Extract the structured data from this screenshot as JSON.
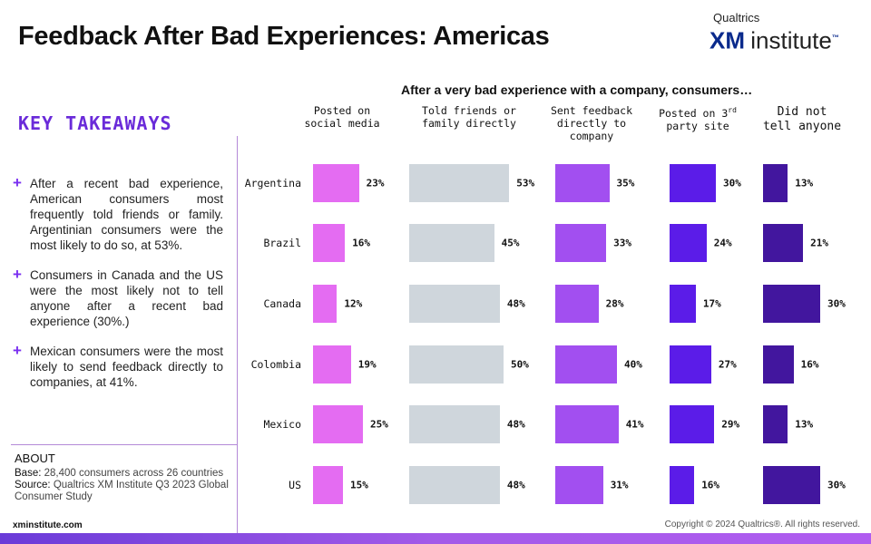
{
  "header": {
    "title": "Feedback After Bad Experiences: Americas",
    "logo_top": "Qualtrics",
    "logo_xm": "XM",
    "logo_institute": "institute"
  },
  "takeaways": {
    "heading": "KEY TAKEAWAYS",
    "items": [
      "After a recent bad experience, American consumers most frequently told friends or family. Argentinian consumers were the most likely to do so, at 53%.",
      "Consumers in Canada and the US were the most likely not to tell anyone after a recent bad experience (30%.)",
      "Mexican consumers were the most likely to send feedback directly to companies, at 41%."
    ]
  },
  "about": {
    "heading": "ABOUT",
    "base_label": "Base:",
    "base": "28,400 consumers across 26 countries",
    "source_label": "Source:",
    "source": "Qualtrics XM Institute Q3 2023 Global Consumer Study"
  },
  "footer": {
    "site": "xminstitute.com",
    "copyright": "Copyright © 2024 Qualtrics®. All rights reserved."
  },
  "chart_data": {
    "type": "bar",
    "title": "After a very bad experience with a company, consumers…",
    "categories": [
      "Argentina",
      "Brazil",
      "Canada",
      "Colombia",
      "Mexico",
      "US"
    ],
    "series": [
      {
        "name": "Posted on social media",
        "color": "#e46cf2",
        "values": [
          23,
          16,
          12,
          19,
          25,
          15
        ]
      },
      {
        "name": "Told friends or family directly",
        "color": "#cfd6dc",
        "values": [
          53,
          45,
          48,
          50,
          48,
          48
        ]
      },
      {
        "name": "Sent feedback directly to company",
        "color": "#a24ff0",
        "values": [
          35,
          33,
          28,
          40,
          41,
          31
        ]
      },
      {
        "name": "Posted on 3rd party site",
        "color": "#5b1ce8",
        "values": [
          30,
          24,
          17,
          27,
          29,
          16
        ]
      },
      {
        "name": "Did not tell anyone",
        "color": "#42169e",
        "values": [
          13,
          21,
          30,
          16,
          13,
          30
        ]
      }
    ],
    "unit": "%"
  }
}
